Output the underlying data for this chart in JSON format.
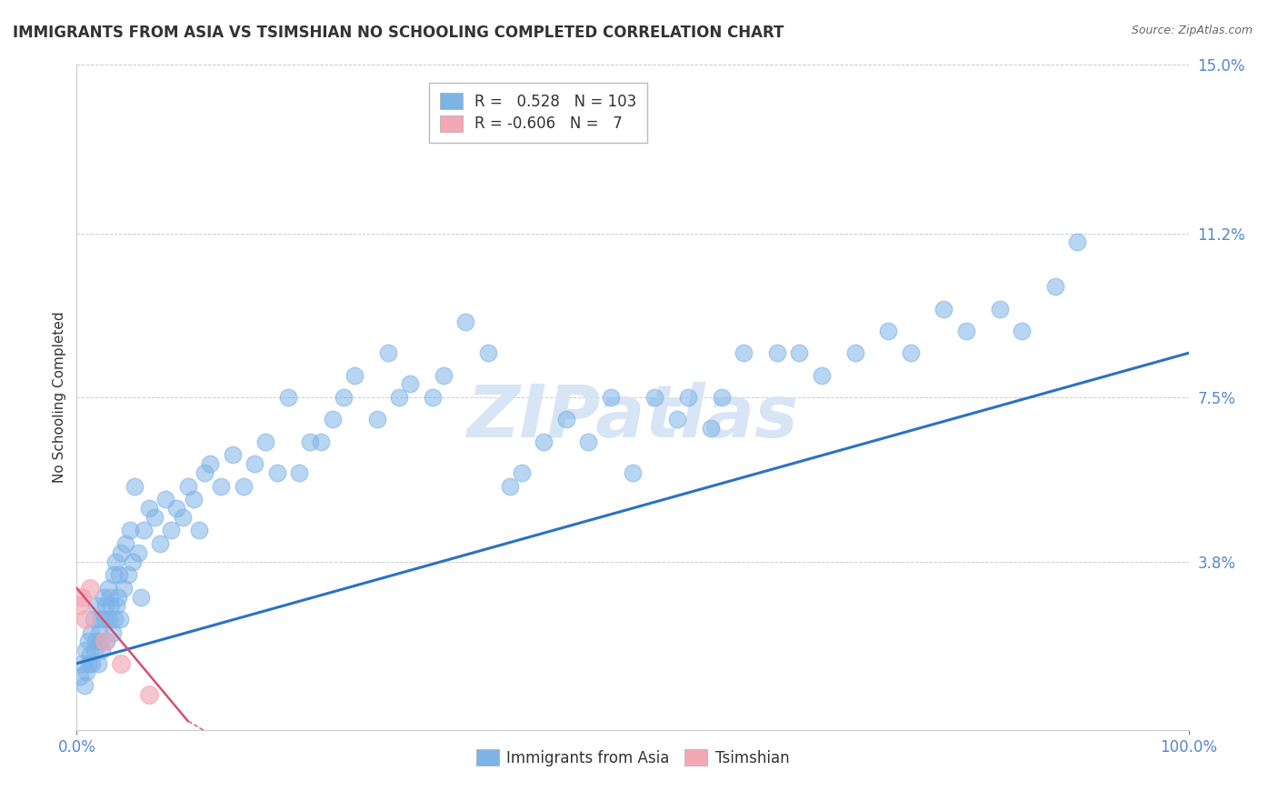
{
  "title": "IMMIGRANTS FROM ASIA VS TSIMSHIAN NO SCHOOLING COMPLETED CORRELATION CHART",
  "source_text": "Source: ZipAtlas.com",
  "ylabel": "No Schooling Completed",
  "legend_bottom": [
    "Immigrants from Asia",
    "Tsimshian"
  ],
  "blue_R": 0.528,
  "blue_N": 103,
  "pink_R": -0.606,
  "pink_N": 7,
  "xlim": [
    0.0,
    100.0
  ],
  "ylim": [
    0.0,
    15.0
  ],
  "yticks": [
    3.8,
    7.5,
    11.2,
    15.0
  ],
  "ytick_top": 15.0,
  "blue_color": "#7EB3E8",
  "pink_color": "#F4A7B5",
  "blue_line_color": "#2B72C2",
  "pink_line_color": "#D94F6E",
  "grid_color": "#CCCCCC",
  "title_color": "#333333",
  "axis_tick_color": "#5588CC",
  "watermark_color": "#D8E5F5",
  "background_color": "#FFFFFF",
  "blue_scatter_x": [
    0.3,
    0.5,
    0.7,
    0.8,
    0.9,
    1.0,
    1.1,
    1.2,
    1.3,
    1.4,
    1.5,
    1.6,
    1.7,
    1.8,
    1.9,
    2.0,
    2.1,
    2.2,
    2.3,
    2.4,
    2.5,
    2.6,
    2.7,
    2.8,
    2.9,
    3.0,
    3.1,
    3.2,
    3.3,
    3.4,
    3.5,
    3.6,
    3.7,
    3.8,
    3.9,
    4.0,
    4.2,
    4.4,
    4.6,
    4.8,
    5.0,
    5.2,
    5.5,
    5.8,
    6.0,
    6.5,
    7.0,
    7.5,
    8.0,
    8.5,
    9.0,
    9.5,
    10.0,
    10.5,
    11.0,
    11.5,
    12.0,
    13.0,
    14.0,
    15.0,
    16.0,
    17.0,
    18.0,
    19.0,
    20.0,
    21.0,
    22.0,
    23.0,
    24.0,
    25.0,
    27.0,
    28.0,
    29.0,
    30.0,
    32.0,
    33.0,
    35.0,
    37.0,
    39.0,
    40.0,
    42.0,
    44.0,
    46.0,
    48.0,
    50.0,
    52.0,
    54.0,
    55.0,
    57.0,
    58.0,
    60.0,
    63.0,
    65.0,
    67.0,
    70.0,
    73.0,
    75.0,
    78.0,
    80.0,
    83.0,
    85.0,
    88.0,
    90.0
  ],
  "blue_scatter_y": [
    1.2,
    1.5,
    1.0,
    1.8,
    1.3,
    2.0,
    1.5,
    1.7,
    2.2,
    1.5,
    2.5,
    1.8,
    2.0,
    2.8,
    1.5,
    2.2,
    2.0,
    2.5,
    1.8,
    3.0,
    2.5,
    2.8,
    2.0,
    3.2,
    2.5,
    3.0,
    2.8,
    2.2,
    3.5,
    2.5,
    3.8,
    2.8,
    3.0,
    3.5,
    2.5,
    4.0,
    3.2,
    4.2,
    3.5,
    4.5,
    3.8,
    5.5,
    4.0,
    3.0,
    4.5,
    5.0,
    4.8,
    4.2,
    5.2,
    4.5,
    5.0,
    4.8,
    5.5,
    5.2,
    4.5,
    5.8,
    6.0,
    5.5,
    6.2,
    5.5,
    6.0,
    6.5,
    5.8,
    7.5,
    5.8,
    6.5,
    6.5,
    7.0,
    7.5,
    8.0,
    7.0,
    8.5,
    7.5,
    7.8,
    7.5,
    8.0,
    9.2,
    8.5,
    5.5,
    5.8,
    6.5,
    7.0,
    6.5,
    7.5,
    5.8,
    7.5,
    7.0,
    7.5,
    6.8,
    7.5,
    8.5,
    8.5,
    8.5,
    8.0,
    8.5,
    9.0,
    8.5,
    9.5,
    9.0,
    9.5,
    9.0,
    10.0,
    11.0
  ],
  "pink_scatter_x": [
    0.2,
    0.5,
    0.8,
    1.2,
    2.5,
    4.0,
    6.5
  ],
  "pink_scatter_y": [
    2.8,
    3.0,
    2.5,
    3.2,
    2.0,
    1.5,
    0.8
  ],
  "blue_trend_x0": 0.0,
  "blue_trend_y0": 1.5,
  "blue_trend_x1": 100.0,
  "blue_trend_y1": 8.5,
  "pink_trend_x0": 0.0,
  "pink_trend_y0": 3.2,
  "pink_trend_x1": 10.0,
  "pink_trend_y1": 0.2
}
